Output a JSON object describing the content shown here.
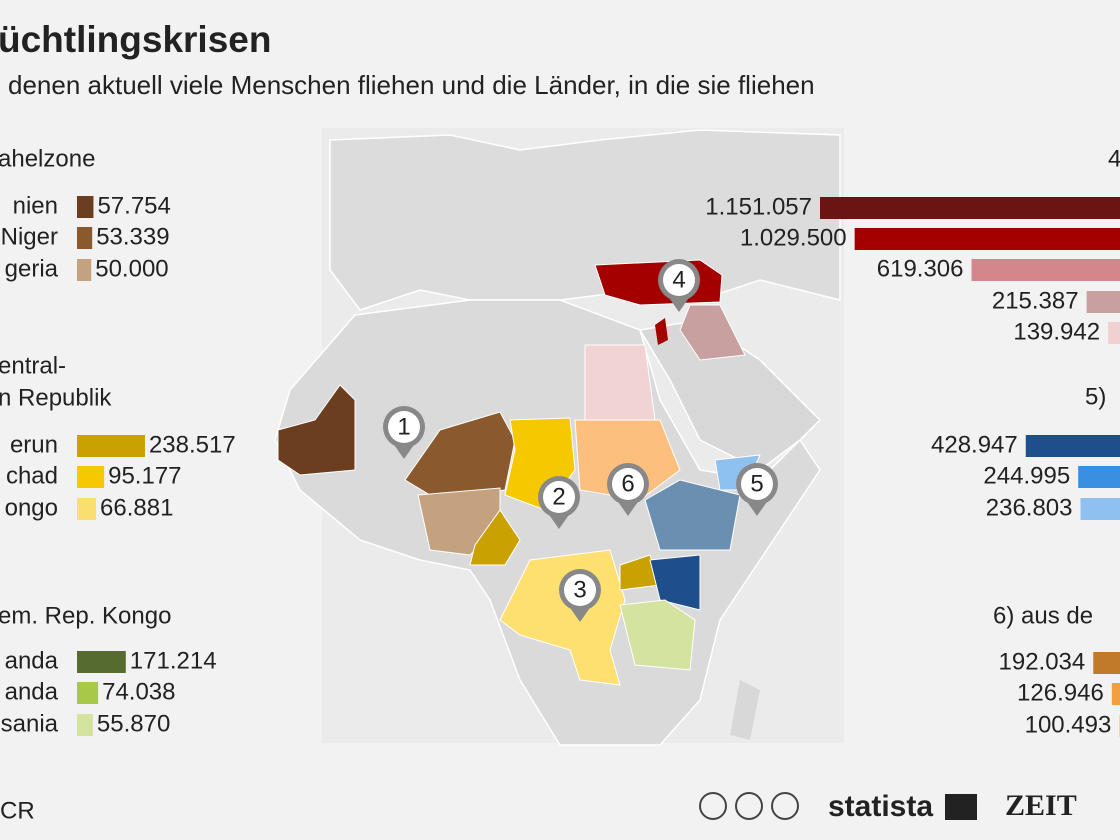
{
  "title": "üchtlingskrisen",
  "subtitle": "denen aktuell viele Menschen fliehen und die Länder, in die sie fliehen",
  "panels": [
    {
      "side": "left",
      "heading": [
        "ahelzone"
      ],
      "items": [
        {
          "label": "nien",
          "value": 57754,
          "value_label": "57.754",
          "color": "#6b3e1f"
        },
        {
          "label": "Niger",
          "value": 53339,
          "value_label": "53.339",
          "color": "#8a5a2e"
        },
        {
          "label": "geria",
          "value": 50000,
          "value_label": "50.000",
          "color": "#c4a27f"
        }
      ]
    },
    {
      "side": "left",
      "heading": [
        "entral-",
        "n Republik"
      ],
      "items": [
        {
          "label": "erun",
          "value": 238517,
          "value_label": "238.517",
          "color": "#c9a100"
        },
        {
          "label": "chad",
          "value": 95177,
          "value_label": "95.177",
          "color": "#f5c800"
        },
        {
          "label": "ongo",
          "value": 66881,
          "value_label": "66.881",
          "color": "#f8df70"
        }
      ]
    },
    {
      "side": "left",
      "heading": [
        "em. Rep. Kongo"
      ],
      "items": [
        {
          "label": "anda",
          "value": 171214,
          "value_label": "171.214",
          "color": "#556b2f"
        },
        {
          "label": "anda",
          "value": 74038,
          "value_label": "74.038",
          "color": "#a8c84a"
        },
        {
          "label": "sania",
          "value": 55870,
          "value_label": "55.870",
          "color": "#d4e3a0"
        }
      ]
    },
    {
      "side": "right",
      "heading": [
        "4"
      ],
      "items": [
        {
          "value": 1151057,
          "value_label": "1.151.057",
          "color": "#6b1414"
        },
        {
          "value": 1029500,
          "value_label": "1.029.500",
          "color": "#a50000"
        },
        {
          "value": 619306,
          "value_label": "619.306",
          "color": "#d4868a"
        },
        {
          "value": 215387,
          "value_label": "215.387",
          "color": "#c9a0a0"
        },
        {
          "value": 139942,
          "value_label": "139.942",
          "color": "#f0d0d0"
        }
      ]
    },
    {
      "side": "right",
      "heading": [
        "5)"
      ],
      "items": [
        {
          "value": 428947,
          "value_label": "428.947",
          "color": "#1f4e8c"
        },
        {
          "value": 244995,
          "value_label": "244.995",
          "color": "#3a8fe0"
        },
        {
          "value": 236803,
          "value_label": "236.803",
          "color": "#8ec0f0"
        }
      ]
    },
    {
      "side": "right",
      "heading": [
        "6) aus de"
      ],
      "items": [
        {
          "value": 192034,
          "value_label": "192.034",
          "color": "#c07a2a"
        },
        {
          "value": 126946,
          "value_label": "126.946",
          "color": "#f0a040"
        },
        {
          "value": 100493,
          "value_label": "100.493",
          "color": "#f5c58a"
        }
      ]
    }
  ],
  "pins": [
    "1",
    "2",
    "3",
    "4",
    "5",
    "6"
  ],
  "source": "CR",
  "brands": [
    "statista",
    "ZEIT"
  ]
}
